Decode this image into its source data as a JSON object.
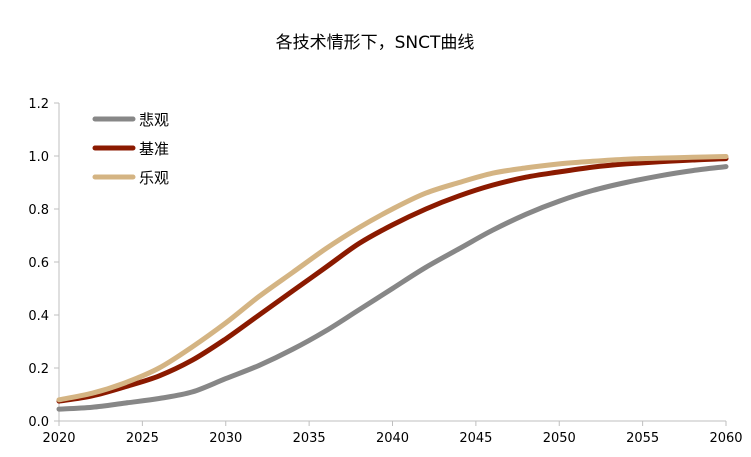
{
  "chart_data": {
    "type": "line",
    "title": "各技术情形下，SNCT曲线",
    "xlabel": "",
    "ylabel": "",
    "xlim": [
      2020,
      2060
    ],
    "ylim": [
      0,
      1.2
    ],
    "x_ticks": [
      "2020",
      "2025",
      "2030",
      "2035",
      "2040",
      "2045",
      "2050",
      "2055",
      "2060"
    ],
    "y_ticks": [
      "0.0",
      "0.2",
      "0.4",
      "0.6",
      "0.8",
      "1.0",
      "1.2"
    ],
    "grid": false,
    "legend_position": "top-left",
    "x": [
      2020,
      2022,
      2024,
      2026,
      2028,
      2030,
      2032,
      2034,
      2036,
      2038,
      2040,
      2042,
      2044,
      2046,
      2048,
      2050,
      2052,
      2054,
      2056,
      2058,
      2060
    ],
    "series": [
      {
        "name": "悲观",
        "color": "#878787",
        "values": [
          0.045,
          0.052,
          0.068,
          0.085,
          0.11,
          0.16,
          0.21,
          0.27,
          0.34,
          0.42,
          0.5,
          0.58,
          0.65,
          0.72,
          0.78,
          0.83,
          0.87,
          0.9,
          0.925,
          0.945,
          0.96
        ]
      },
      {
        "name": "基准",
        "color": "#8B1A00",
        "values": [
          0.075,
          0.095,
          0.13,
          0.17,
          0.23,
          0.31,
          0.4,
          0.49,
          0.58,
          0.67,
          0.74,
          0.8,
          0.85,
          0.89,
          0.92,
          0.94,
          0.958,
          0.97,
          0.978,
          0.985,
          0.99
        ]
      },
      {
        "name": "乐观",
        "color": "#D4B483",
        "values": [
          0.08,
          0.105,
          0.145,
          0.2,
          0.28,
          0.37,
          0.47,
          0.56,
          0.65,
          0.73,
          0.8,
          0.86,
          0.9,
          0.935,
          0.955,
          0.97,
          0.98,
          0.988,
          0.992,
          0.995,
          0.998
        ]
      }
    ]
  }
}
